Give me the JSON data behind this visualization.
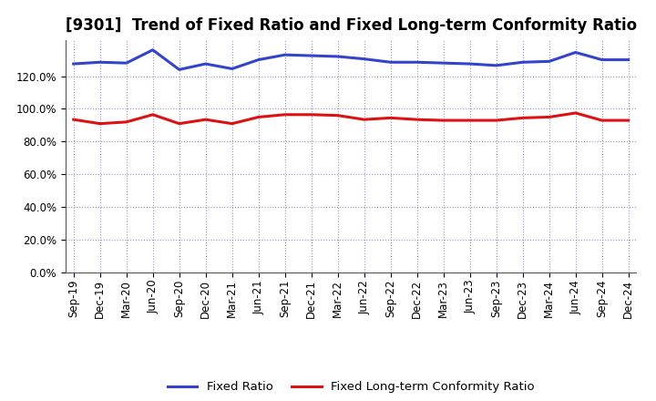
{
  "title": "[9301]  Trend of Fixed Ratio and Fixed Long-term Conformity Ratio",
  "x_labels": [
    "Sep-19",
    "Dec-19",
    "Mar-20",
    "Jun-20",
    "Sep-20",
    "Dec-20",
    "Mar-21",
    "Jun-21",
    "Sep-21",
    "Dec-21",
    "Mar-22",
    "Jun-22",
    "Sep-22",
    "Dec-22",
    "Mar-23",
    "Jun-23",
    "Sep-23",
    "Dec-23",
    "Mar-24",
    "Jun-24",
    "Sep-24",
    "Dec-24"
  ],
  "fixed_ratio": [
    127.5,
    128.5,
    128.0,
    136.0,
    124.0,
    127.5,
    124.5,
    130.0,
    133.0,
    132.5,
    132.0,
    130.5,
    128.5,
    128.5,
    128.0,
    127.5,
    126.5,
    128.5,
    129.0,
    134.5,
    130.0,
    130.0
  ],
  "fixed_lt_ratio": [
    93.5,
    91.0,
    92.0,
    96.5,
    91.0,
    93.5,
    91.0,
    95.0,
    96.5,
    96.5,
    96.0,
    93.5,
    94.5,
    93.5,
    93.0,
    93.0,
    93.0,
    94.5,
    95.0,
    97.5,
    93.0,
    93.0
  ],
  "fixed_ratio_color": "#3344cc",
  "fixed_lt_ratio_color": "#dd1111",
  "background_color": "#ffffff",
  "plot_bg_color": "#ffffff",
  "grid_color": "#8888bb",
  "ylim": [
    0,
    142
  ],
  "yticks": [
    0,
    20,
    40,
    60,
    80,
    100,
    120
  ],
  "legend_fixed_ratio": "Fixed Ratio",
  "legend_fixed_lt_ratio": "Fixed Long-term Conformity Ratio",
  "title_fontsize": 12,
  "axis_fontsize": 8.5,
  "legend_fontsize": 9.5
}
